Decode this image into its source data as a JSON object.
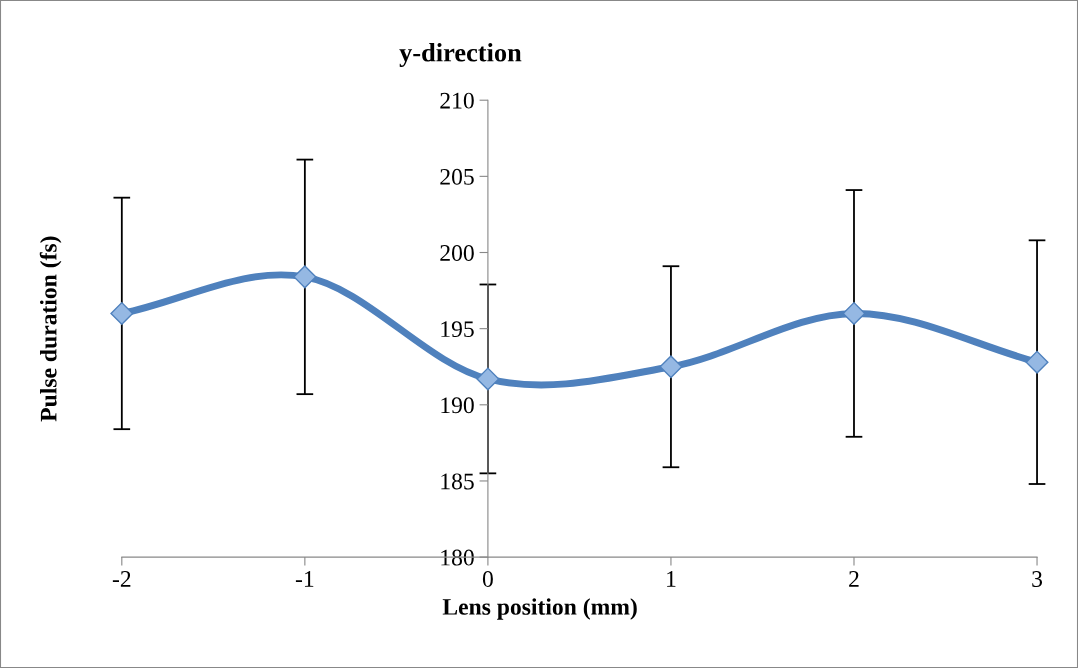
{
  "chart_data": {
    "type": "line",
    "title": "y-direction",
    "xlabel": "Lens position (mm)",
    "ylabel": "Pulse duration (fs)",
    "x": [
      -2,
      -1,
      0,
      1,
      2,
      3
    ],
    "series": [
      {
        "color": "#4f81bd",
        "values": [
          196.0,
          198.4,
          191.7,
          192.5,
          196.0,
          192.8
        ],
        "errors": [
          7.6,
          7.7,
          6.2,
          6.6,
          8.1,
          8.0
        ]
      }
    ],
    "xlim": [
      -2,
      3
    ],
    "xticks": [
      -2,
      -1,
      0,
      1,
      2,
      3
    ],
    "ylim": [
      180,
      210
    ],
    "yticks": [
      180,
      185,
      190,
      195,
      200,
      205,
      210
    ],
    "marker": "diamond",
    "line_style": "solid",
    "grid": false,
    "legend": false
  }
}
